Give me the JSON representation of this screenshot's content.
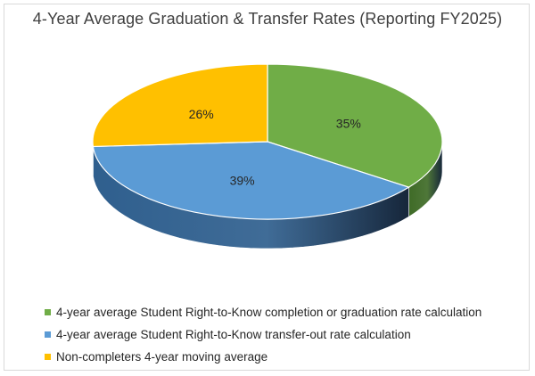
{
  "chart_data": {
    "type": "pie",
    "title": "4-Year Average Graduation & Transfer Rates (Reporting FY2025)",
    "slices": [
      {
        "label": "4-year average Student Right-to-Know completion or graduation rate calculation",
        "value": 35,
        "value_label": "35%",
        "color": "#70ad47",
        "side_color": "#3f6b27"
      },
      {
        "label": "4-year average Student Right-to-Know transfer-out rate calculation",
        "value": 39,
        "value_label": "39%",
        "color": "#5b9bd5",
        "side_color": "#2f5f8e"
      },
      {
        "label": "Non-completers 4-year moving average",
        "value": 26,
        "value_label": "26%",
        "color": "#ffc000",
        "side_color": "#a57c00"
      }
    ],
    "legend_position": "bottom-left",
    "style": "3d"
  }
}
